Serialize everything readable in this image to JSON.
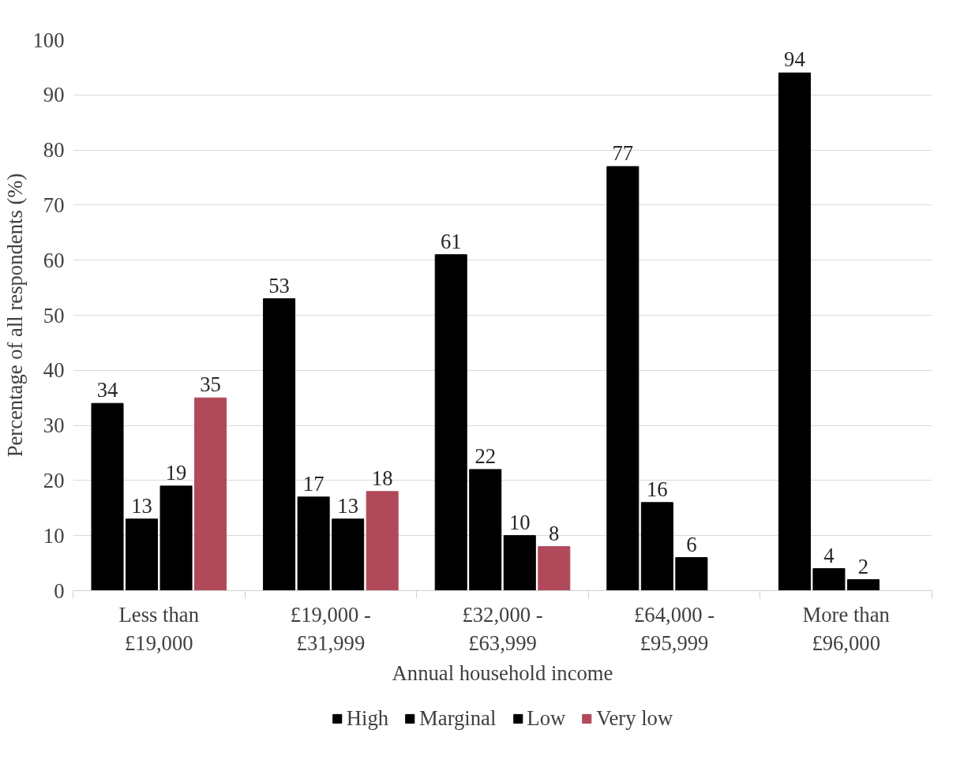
{
  "chart_data": {
    "type": "bar",
    "xlabel": "Annual household income",
    "ylabel": "Percentage of all respondents (%)",
    "categories": [
      "Less than £19,000",
      "£19,000 - £31,999",
      "£32,000 - £63,999",
      "£64,000 - £95,999",
      "More than £96,000"
    ],
    "series": [
      {
        "name": "High",
        "color": "#000000",
        "values": [
          34,
          53,
          61,
          77,
          94
        ]
      },
      {
        "name": "Marginal",
        "color": "#000000",
        "values": [
          13,
          17,
          22,
          16,
          4
        ]
      },
      {
        "name": "Low",
        "color": "#000000",
        "values": [
          19,
          13,
          10,
          6,
          2
        ]
      },
      {
        "name": "Very low",
        "color": "#b04a5a",
        "values": [
          35,
          18,
          8,
          null,
          null
        ]
      }
    ],
    "ylim": [
      0,
      100
    ],
    "yticks": [
      0,
      10,
      20,
      30,
      40,
      50,
      60,
      70,
      80,
      90,
      100
    ],
    "grid": "y",
    "legend": "bottom",
    "data_labels": true
  }
}
